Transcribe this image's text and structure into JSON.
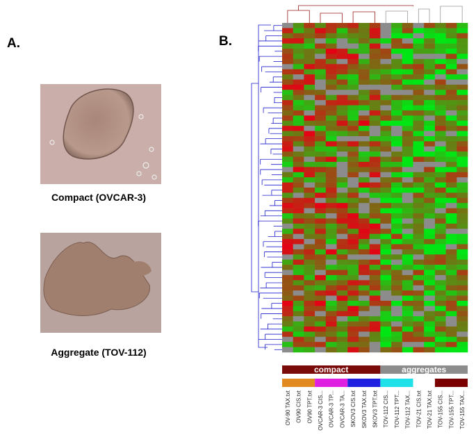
{
  "panels": {
    "a": {
      "label": "A.",
      "images": [
        {
          "caption": "Compact (OVCAR-3)"
        },
        {
          "caption": "Aggregate (TOV-112)"
        }
      ]
    },
    "b": {
      "label": "B.",
      "groups": [
        "compact",
        "aggregates"
      ],
      "columns": [
        "OV-90 TAX.txt",
        "OV90 CIS.txt",
        "OV90 TPT.txt",
        "OVCAR-3 CIS...",
        "OVCAR-3 TP...",
        "OVCAR-3 TA...",
        "SKOV3 CIS.txt",
        "SKOV3 TAX.txt",
        "SKOV3 TPT.txt",
        "TOV-112 CIS...",
        "TOV-112 TPT...",
        "TOV-112 TAX...",
        "TOV-21 CIS.txt",
        "TOV-21 TAX.txt",
        "TOV-155 CIS...",
        "TOV-155 TPT...",
        "TOV-155 TAX..."
      ]
    }
  }
}
